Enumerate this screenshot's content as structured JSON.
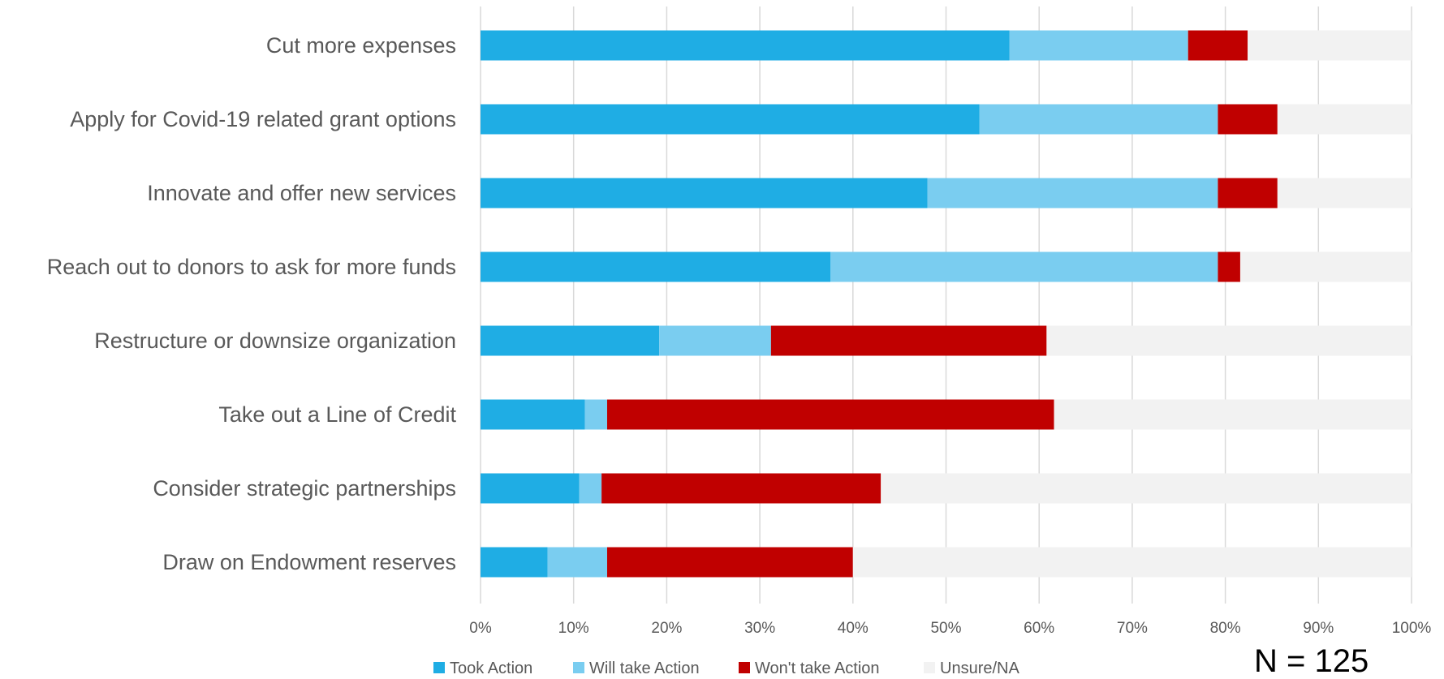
{
  "chart_data": {
    "type": "bar",
    "orientation": "horizontal",
    "stacked": "percent",
    "categories": [
      "Cut more expenses",
      "Apply for Covid-19 related grant options",
      "Innovate and offer new services",
      "Reach out to donors to ask for more funds",
      "Restructure or downsize organization",
      "Take out a Line of Credit",
      "Consider strategic partnerships",
      "Draw on Endowment reserves"
    ],
    "series": [
      {
        "name": "Took Action",
        "color": "#1FADE4",
        "values": [
          56.8,
          53.6,
          48.0,
          37.6,
          19.2,
          11.2,
          10.6,
          7.2
        ]
      },
      {
        "name": "Will take Action",
        "color": "#7ACDF0",
        "values": [
          19.2,
          25.6,
          31.2,
          41.6,
          12.0,
          2.4,
          2.4,
          6.4
        ]
      },
      {
        "name": "Won't take Action",
        "color": "#C00000",
        "values": [
          6.4,
          6.4,
          6.4,
          2.4,
          29.6,
          48.0,
          30.0,
          26.4
        ]
      },
      {
        "name": "Unsure/NA",
        "color": "#F2F2F2",
        "values": [
          17.6,
          14.4,
          14.4,
          18.4,
          39.2,
          38.4,
          57.0,
          60.0
        ]
      }
    ],
    "xlim": [
      0,
      100
    ],
    "xticks": [
      "0%",
      "10%",
      "20%",
      "30%",
      "40%",
      "50%",
      "60%",
      "70%",
      "80%",
      "90%",
      "100%"
    ],
    "grid": "vertical",
    "legend": "bottom",
    "title": "",
    "xlabel": "",
    "ylabel": ""
  },
  "note": "N = 125"
}
